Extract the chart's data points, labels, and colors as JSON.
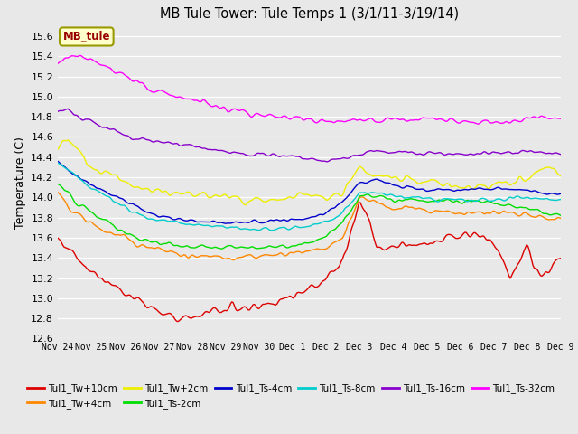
{
  "title": "MB Tule Tower: Tule Temps 1 (3/1/11-3/19/14)",
  "ylabel": "Temperature (C)",
  "ylim": [
    12.6,
    15.7
  ],
  "yticks": [
    12.6,
    12.8,
    13.0,
    13.2,
    13.4,
    13.6,
    13.8,
    14.0,
    14.2,
    14.4,
    14.6,
    14.8,
    15.0,
    15.2,
    15.4,
    15.6
  ],
  "bg_color": "#e8e8e8",
  "series_colors": {
    "Tul1_Tw+10cm": "#dd0000",
    "Tul1_Tw+4cm": "#ff8800",
    "Tul1_Tw+2cm": "#eeee00",
    "Tul1_Ts-2cm": "#00dd00",
    "Tul1_Ts-4cm": "#0000cc",
    "Tul1_Ts-8cm": "#00cccc",
    "Tul1_Ts-16cm": "#8800cc",
    "Tul1_Ts-32cm": "#ff00ff"
  },
  "legend_box_text": "MB_tule",
  "xtick_labels": [
    "Nov 24",
    "Nov 25",
    "Nov 26",
    "Nov 27",
    "Nov 28",
    "Nov 29",
    "Nov 30",
    "Dec 1",
    "Dec 2",
    "Dec 3",
    "Dec 4",
    "Dec 5",
    "Dec 6",
    "Dec 7",
    "Dec 8",
    "Dec 9"
  ],
  "n_points": 400,
  "noise_seed": 42
}
